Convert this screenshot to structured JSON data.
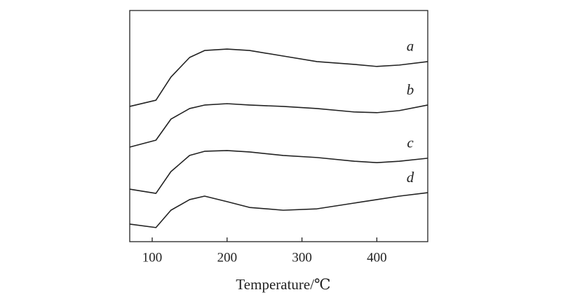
{
  "chart_data": {
    "type": "line",
    "xlabel": "Temperature/℃",
    "x": [
      70,
      105,
      125,
      150,
      170,
      200,
      230,
      275,
      320,
      370,
      400,
      430,
      468
    ],
    "xlim": [
      70,
      468
    ],
    "xticks": [
      100,
      200,
      300,
      400
    ],
    "ylim": [
      0,
      100
    ],
    "series": [
      {
        "name": "a",
        "color": "#222222",
        "values": [
          58.5,
          61.2,
          71.2,
          79.7,
          82.7,
          83.3,
          82.7,
          80.3,
          77.9,
          76.7,
          75.8,
          76.4,
          77.9
        ]
      },
      {
        "name": "b",
        "color": "#222222",
        "values": [
          40.9,
          43.9,
          53.0,
          57.6,
          59.1,
          59.7,
          59.1,
          58.5,
          57.6,
          56.1,
          55.8,
          56.7,
          59.1
        ]
      },
      {
        "name": "c",
        "color": "#222222",
        "values": [
          22.7,
          20.9,
          30.3,
          37.3,
          39.1,
          39.4,
          38.8,
          37.3,
          36.4,
          34.8,
          34.2,
          34.8,
          36.1
        ]
      },
      {
        "name": "d",
        "color": "#222222",
        "values": [
          7.6,
          6.1,
          13.6,
          18.2,
          19.7,
          17.3,
          14.8,
          13.6,
          14.2,
          16.7,
          18.2,
          19.7,
          21.2
        ]
      }
    ]
  }
}
